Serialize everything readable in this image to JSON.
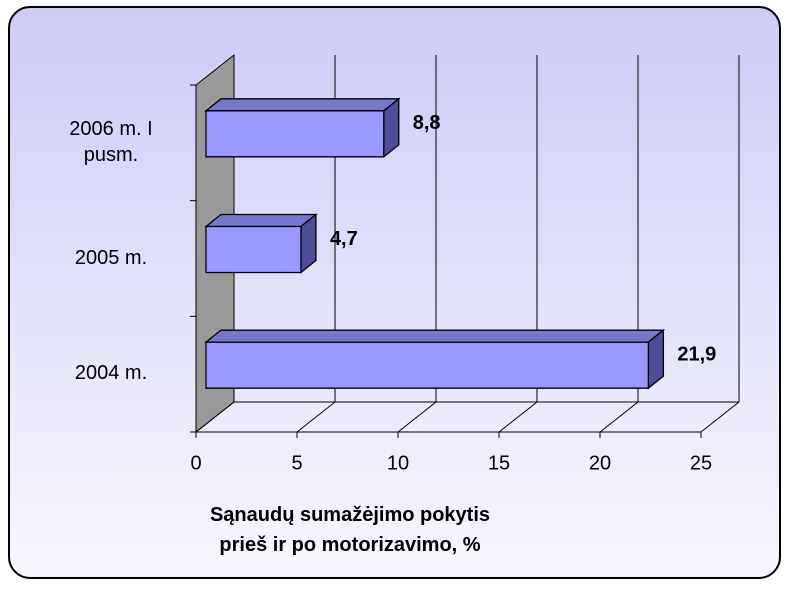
{
  "chart_data": {
    "type": "bar3d_horizontal",
    "categories": [
      "2004 m.",
      "2005 m.",
      "2006 m. I pusm."
    ],
    "values": [
      21.9,
      4.7,
      8.8
    ],
    "value_labels": [
      "21,9",
      "4,7",
      "8,8"
    ],
    "color": "#9999ff",
    "xlim": [
      0,
      25
    ],
    "xticks": [
      0,
      5,
      10,
      15,
      20,
      25
    ],
    "x_label": "Sąnaudų sumažėjimo pokytis prieš ir po motorizavimo, %",
    "grid": true
  }
}
